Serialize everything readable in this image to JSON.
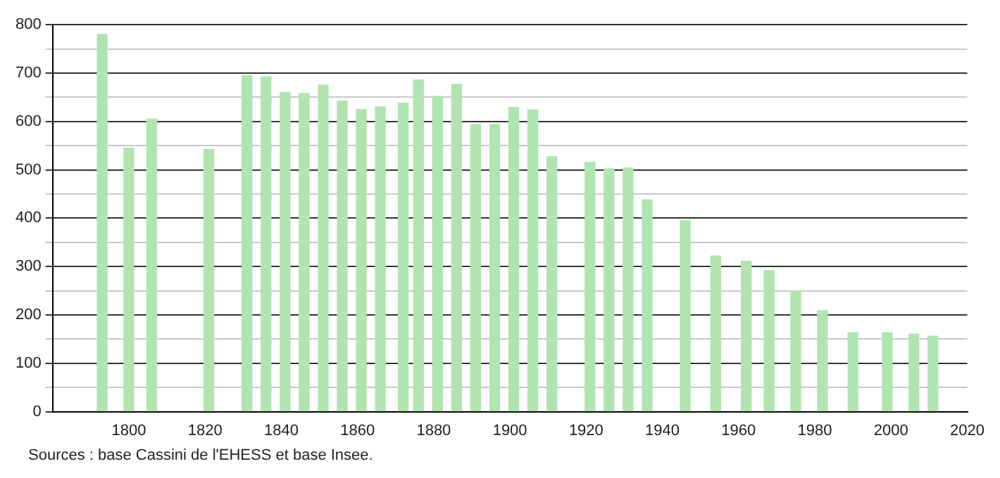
{
  "chart_data": {
    "type": "bar",
    "x": [
      1793,
      1800,
      1806,
      1821,
      1831,
      1836,
      1841,
      1846,
      1851,
      1856,
      1861,
      1866,
      1872,
      1876,
      1881,
      1886,
      1891,
      1896,
      1901,
      1906,
      1911,
      1921,
      1926,
      1931,
      1936,
      1946,
      1954,
      1962,
      1968,
      1975,
      1982,
      1990,
      1999,
      2006,
      2011
    ],
    "values": [
      780,
      545,
      605,
      542,
      695,
      692,
      660,
      658,
      675,
      642,
      625,
      630,
      638,
      686,
      652,
      677,
      594,
      594,
      629,
      624,
      527,
      515,
      502,
      504,
      438,
      395,
      322,
      311,
      292,
      250,
      209,
      163,
      163,
      160,
      156
    ],
    "color": "#b0e4b0",
    "xlim": [
      1780,
      2020
    ],
    "xticks": [
      1800,
      1820,
      1840,
      1860,
      1880,
      1900,
      1920,
      1940,
      1960,
      1980,
      2000,
      2020
    ],
    "ylim": [
      0,
      800
    ],
    "yticks": [
      0,
      {
        "value": 50,
        "label": null
      },
      100,
      {
        "value": 150,
        "label": null
      },
      200,
      {
        "value": 250,
        "label": null
      },
      300,
      {
        "value": 350,
        "label": null
      },
      400,
      {
        "value": 450,
        "label": null
      },
      500,
      {
        "value": 550,
        "label": null
      },
      600,
      {
        "value": 650,
        "label": null
      },
      700,
      {
        "value": 750,
        "label": null
      },
      800
    ],
    "grid": "y",
    "legend": false,
    "annotations": [
      "Sources : base Cassini de l'EHESS et base Insee."
    ]
  }
}
